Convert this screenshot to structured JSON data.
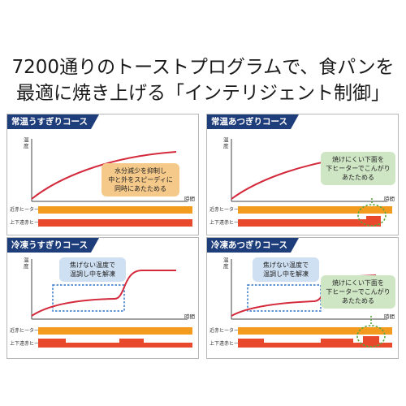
{
  "headline": {
    "line1": "7200通りのトーストプログラムで、食パンを",
    "line2": "最適に焼き上げる「インテリジェント制御」"
  },
  "labels": {
    "y_axis": "温度",
    "x_axis": "時間",
    "heater_near_ir": "近赤ヒーター",
    "heater_top_bottom": "上下遠赤ヒーター"
  },
  "panels": [
    {
      "title": "常温うすぎりコース",
      "callout": [
        "水分減少を抑制し",
        "中と外をスピーディに",
        "同時にあたためる"
      ]
    },
    {
      "title": "常温あつぎりコース",
      "callout": [
        "焼けにくい下面を",
        "下ヒーターでこんがり",
        "あたためる"
      ]
    },
    {
      "title": "冷凍うすぎりコース",
      "callout": [
        "焦げない温度で",
        "温調し中を解凍"
      ]
    },
    {
      "title": "冷凍あつぎりコース",
      "callout": [
        "焦げない温度で",
        "温調し中を解凍"
      ],
      "callout2": [
        "焼けにくい下面を",
        "下ヒーターでこんがり",
        "あたためる"
      ]
    }
  ],
  "colors": {
    "panel_title_bg": "#1e3d7b",
    "curve": "#d42a3c",
    "near_ir_heater": "#f29b1f",
    "top_bottom_heater": "#e8482c",
    "dotted_green": "#5aa83d",
    "dotted_blue": "#2b73c7"
  }
}
